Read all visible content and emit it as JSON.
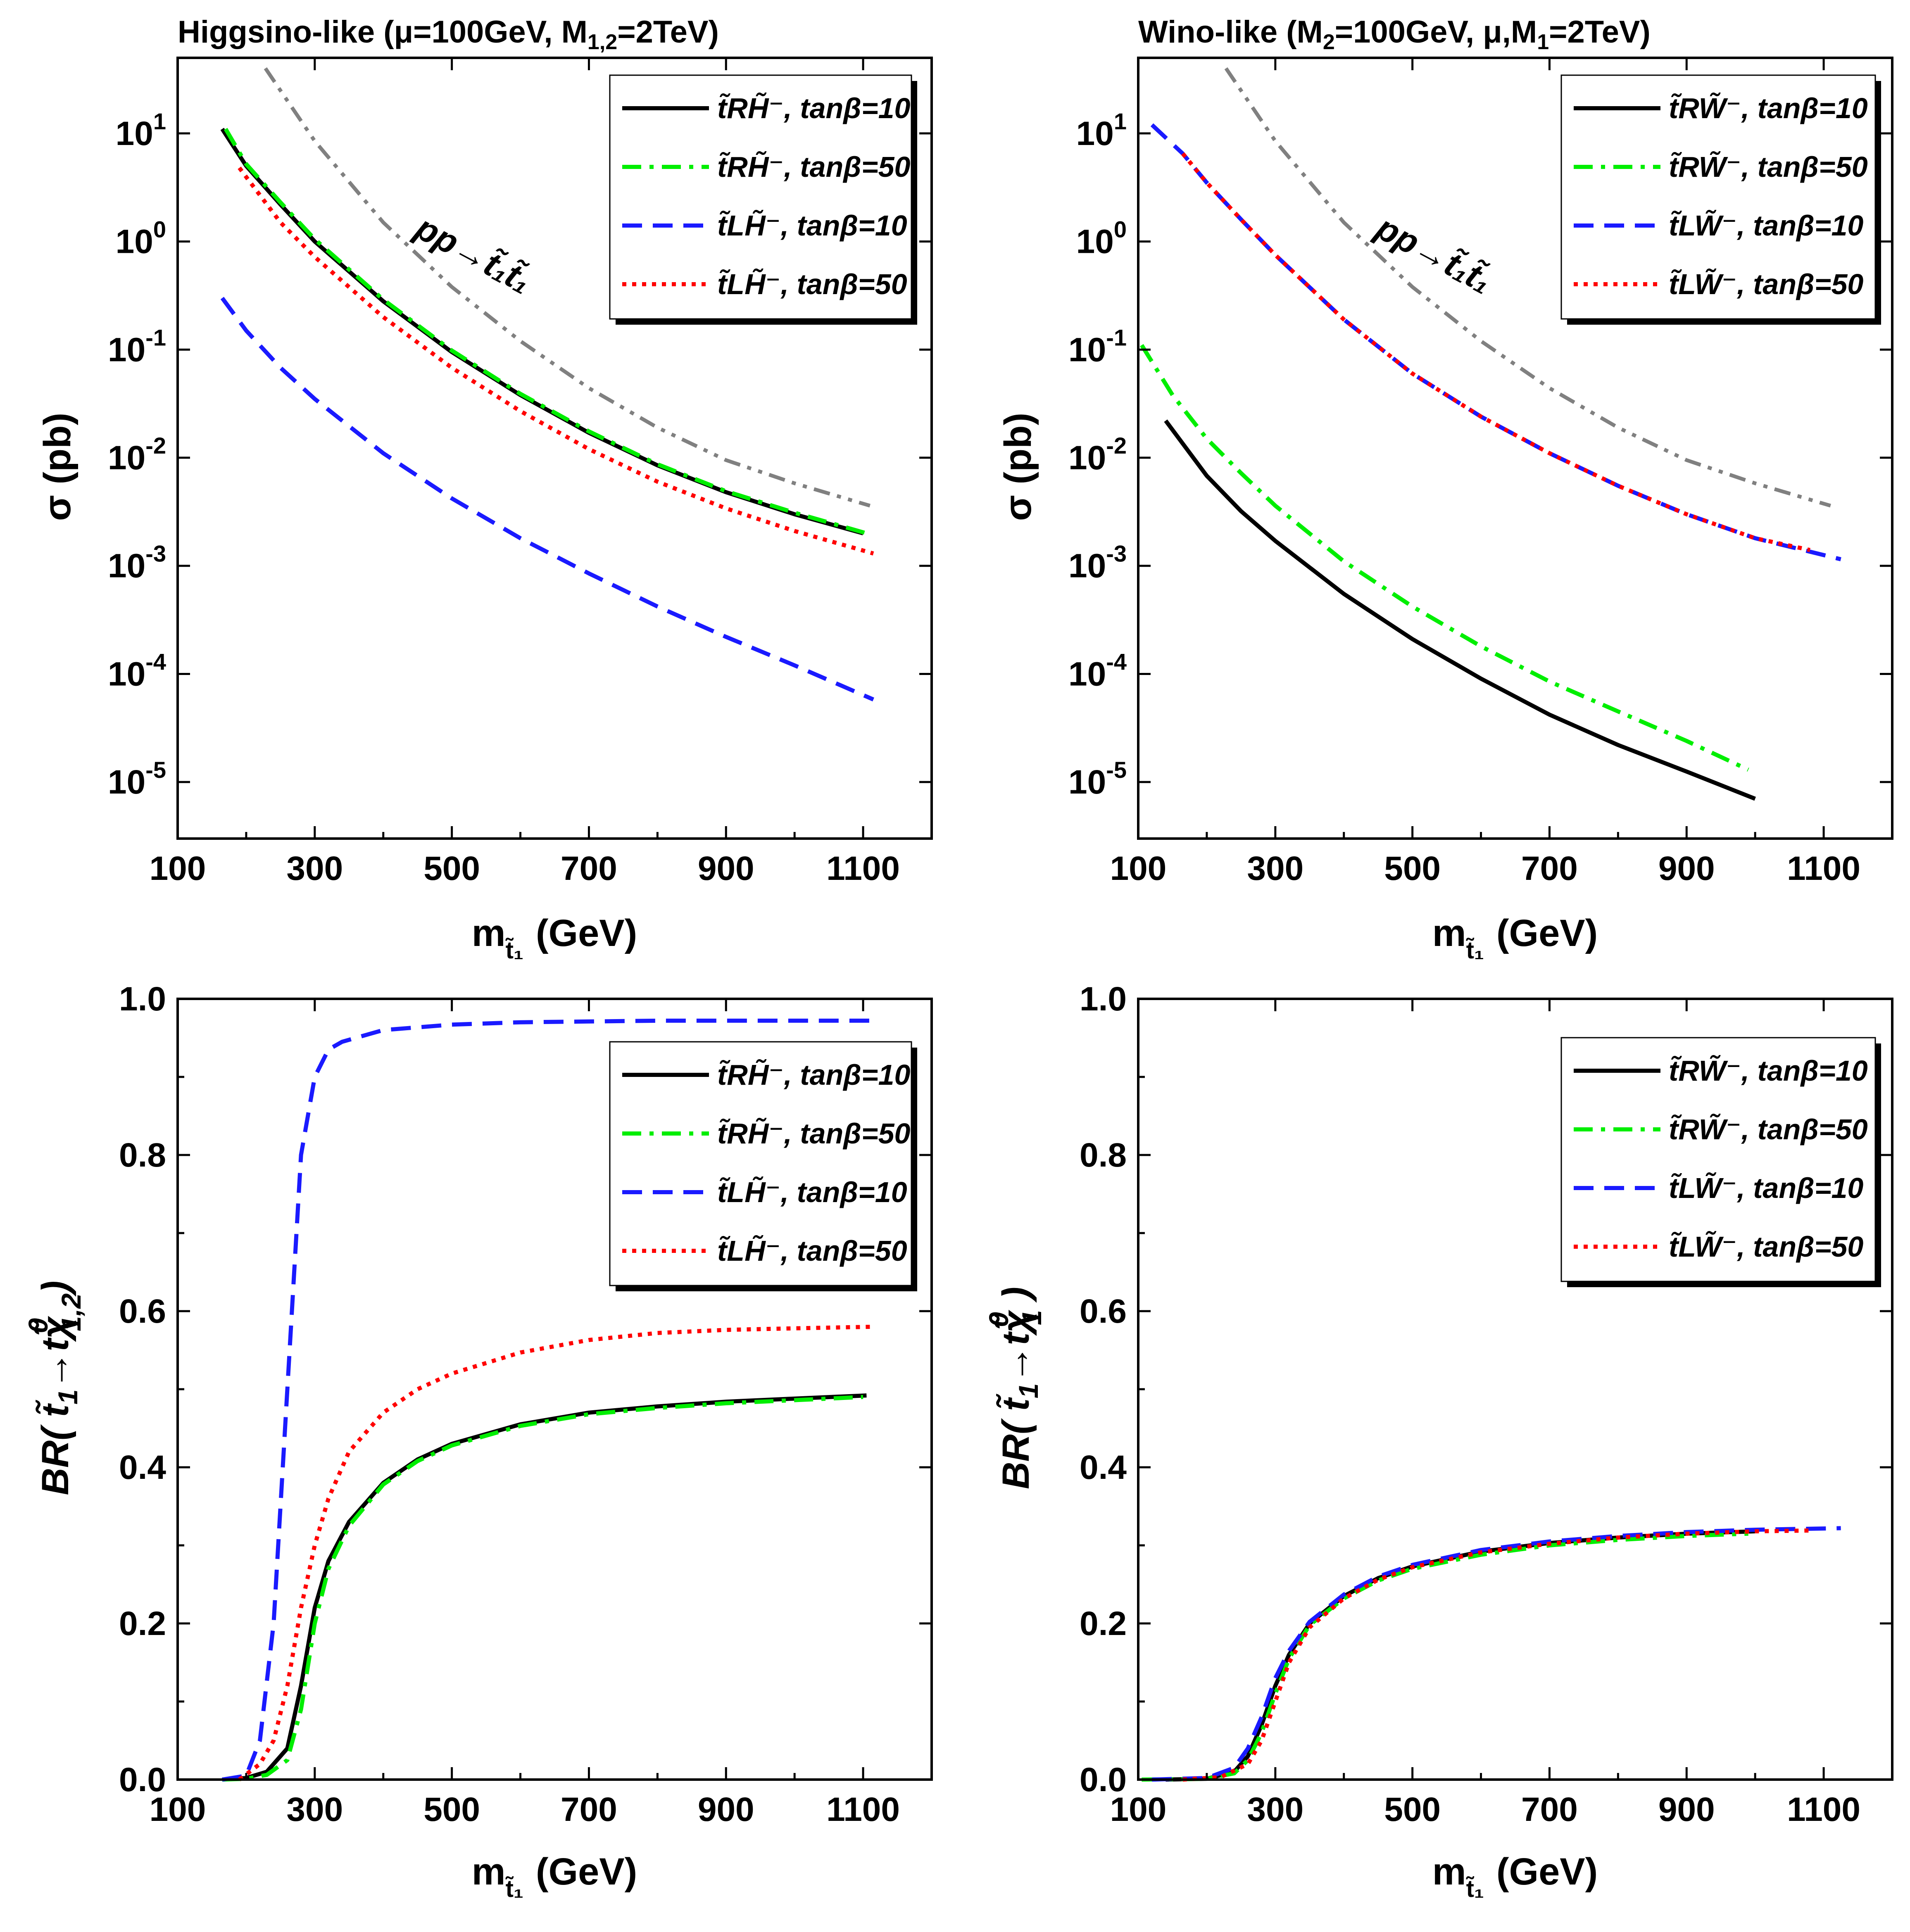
{
  "figure": {
    "styles": {
      "tR_tan10": {
        "color": "#000000",
        "dash": "none"
      },
      "tR_tan50": {
        "color": "#00ee00",
        "dash": "dashdot"
      },
      "tL_tan10": {
        "color": "#1a1aff",
        "dash": "dash"
      },
      "tL_tan50": {
        "color": "#ff0000",
        "dash": "dot"
      },
      "stop_pair": {
        "color": "#808080",
        "dash": "dashdotdot"
      }
    }
  },
  "chart_data": [
    {
      "id": "p1",
      "type": "line",
      "title": "Higgsino-like (μ=100GeV, M₁,₂=2TeV)",
      "title_parts": {
        "a": "Higgsino-like (",
        "b": "μ",
        "c": "=100GeV, M",
        "d": "1,2",
        "e": "=2TeV)"
      },
      "xlabel": {
        "main": "m",
        "sub": "t̃₁",
        "unit": "(GeV)"
      },
      "ylabel": "σ (pb)",
      "yscale": "log",
      "xlim": [
        100,
        1200
      ],
      "ylim": [
        3e-06,
        50
      ],
      "xticks": [
        "100",
        "300",
        "500",
        "700",
        "900",
        "1100"
      ],
      "xtick_values": [
        100,
        300,
        500,
        700,
        900,
        1100
      ],
      "yticks": [
        {
          "base": "10",
          "exp": "1",
          "v": 10
        },
        {
          "base": "10",
          "exp": "0",
          "v": 1
        },
        {
          "base": "10",
          "exp": "-1",
          "v": 0.1
        },
        {
          "base": "10",
          "exp": "-2",
          "v": 0.01
        },
        {
          "base": "10",
          "exp": "-3",
          "v": 0.001
        },
        {
          "base": "10",
          "exp": "-4",
          "v": 0.0001
        },
        {
          "base": "10",
          "exp": "-5",
          "v": 1e-05
        }
      ],
      "annotation": {
        "text": "pp→t̃₁t̃₁",
        "at": [
          560,
          0.6
        ]
      },
      "legend": {
        "placement": "top-right",
        "entries": [
          {
            "label": "t̃RH̃⁻, tanβ=10",
            "style": "tR_tan10"
          },
          {
            "label": "t̃RH̃⁻, tanβ=50",
            "style": "tR_tan50"
          },
          {
            "label": "t̃LH̃⁻, tanβ=10",
            "style": "tL_tan10"
          },
          {
            "label": "t̃LH̃⁻, tanβ=50",
            "style": "tL_tan50"
          }
        ]
      },
      "series": [
        {
          "name": "pp→t̃₁t̃₁",
          "style": "stop_pair",
          "x": [
            228,
            300,
            400,
            500,
            600,
            700,
            800,
            900,
            1000,
            1110
          ],
          "y": [
            40,
            8.5,
            1.5,
            0.38,
            0.12,
            0.044,
            0.019,
            0.0095,
            0.0058,
            0.0036
          ]
        },
        {
          "name": "t̃RH̃⁻, tanβ=10",
          "style": "tR_tan10",
          "x": [
            165,
            200,
            250,
            300,
            400,
            500,
            600,
            700,
            800,
            900,
            1000,
            1100
          ],
          "y": [
            11,
            5,
            2.2,
            1.0,
            0.28,
            0.095,
            0.038,
            0.017,
            0.0085,
            0.0048,
            0.003,
            0.002
          ]
        },
        {
          "name": "t̃RH̃⁻, tanβ=50",
          "style": "tR_tan50",
          "x": [
            170,
            200,
            250,
            300,
            400,
            500,
            600,
            700,
            800,
            900,
            1000,
            1105
          ],
          "y": [
            11,
            5.2,
            2.3,
            1.05,
            0.29,
            0.098,
            0.039,
            0.0175,
            0.0087,
            0.0049,
            0.0031,
            0.002
          ]
        },
        {
          "name": "t̃LH̃⁻, tanβ=10",
          "style": "tL_tan10",
          "x": [
            165,
            200,
            250,
            300,
            400,
            500,
            600,
            700,
            800,
            900,
            1000,
            1115
          ],
          "y": [
            0.3,
            0.15,
            0.068,
            0.035,
            0.011,
            0.0042,
            0.0018,
            0.00085,
            0.00042,
            0.00022,
            0.00012,
            5.8e-05
          ]
        },
        {
          "name": "t̃LH̃⁻, tanβ=50",
          "style": "tL_tan50",
          "x": [
            190,
            250,
            300,
            400,
            500,
            600,
            700,
            800,
            900,
            1000,
            1115
          ],
          "y": [
            4.8,
            1.5,
            0.72,
            0.2,
            0.068,
            0.027,
            0.012,
            0.006,
            0.0034,
            0.0021,
            0.0013
          ]
        }
      ]
    },
    {
      "id": "p2",
      "type": "line",
      "title": "Wino-like (M₂=100GeV, μ,M₁=2TeV)",
      "title_parts": {
        "a": "Wino-like (M",
        "b": "2",
        "c": "=100GeV, ",
        "d": "μ",
        "e": ",M",
        "f": "1",
        "g": "=2TeV)"
      },
      "xlabel": {
        "main": "m",
        "sub": "t̃₁",
        "unit": "(GeV)"
      },
      "ylabel": "σ (pb)",
      "yscale": "log",
      "xlim": [
        100,
        1200
      ],
      "ylim": [
        3e-06,
        50
      ],
      "xticks": [
        "100",
        "300",
        "500",
        "700",
        "900",
        "1100"
      ],
      "xtick_values": [
        100,
        300,
        500,
        700,
        900,
        1100
      ],
      "yticks": [
        {
          "base": "10",
          "exp": "1",
          "v": 10
        },
        {
          "base": "10",
          "exp": "0",
          "v": 1
        },
        {
          "base": "10",
          "exp": "-1",
          "v": 0.1
        },
        {
          "base": "10",
          "exp": "-2",
          "v": 0.01
        },
        {
          "base": "10",
          "exp": "-3",
          "v": 0.001
        },
        {
          "base": "10",
          "exp": "-4",
          "v": 0.0001
        },
        {
          "base": "10",
          "exp": "-5",
          "v": 1e-05
        }
      ],
      "annotation": {
        "text": "pp→t̃₁t̃₁",
        "at": [
          560,
          0.6
        ]
      },
      "legend": {
        "placement": "top-right",
        "entries": [
          {
            "label": "t̃RW̃⁻, tanβ=10",
            "style": "tR_tan10"
          },
          {
            "label": "t̃RW̃⁻, tanβ=50",
            "style": "tR_tan50"
          },
          {
            "label": "t̃LW̃⁻, tanβ=10",
            "style": "tL_tan10"
          },
          {
            "label": "t̃LW̃⁻, tanβ=50",
            "style": "tL_tan50"
          }
        ]
      },
      "series": [
        {
          "name": "pp→t̃₁t̃₁",
          "style": "stop_pair",
          "x": [
            228,
            300,
            400,
            500,
            600,
            700,
            800,
            900,
            1000,
            1110
          ],
          "y": [
            40,
            8.5,
            1.5,
            0.38,
            0.12,
            0.044,
            0.019,
            0.0095,
            0.0058,
            0.0036
          ]
        },
        {
          "name": "t̃RW̃⁻, tanβ=10",
          "style": "tR_tan10",
          "x": [
            140,
            200,
            250,
            300,
            400,
            500,
            600,
            700,
            800,
            900,
            1000
          ],
          "y": [
            0.022,
            0.0068,
            0.0032,
            0.0017,
            0.00055,
            0.00021,
            9.05e-05,
            4.2e-05,
            2.2e-05,
            1.25e-05,
            7e-06
          ]
        },
        {
          "name": "t̃RW̃⁻, tanβ=50",
          "style": "tR_tan50",
          "x": [
            105,
            150,
            200,
            250,
            300,
            400,
            500,
            600,
            700,
            800,
            900,
            990
          ],
          "y": [
            0.11,
            0.038,
            0.015,
            0.0072,
            0.0036,
            0.0011,
            0.00042,
            0.00018,
            8.5e-05,
            4.5e-05,
            2.4e-05,
            1.3e-05
          ]
        },
        {
          "name": "t̃LW̃⁻, tanβ=10",
          "style": "tL_tan10",
          "x": [
            120,
            165,
            200,
            250,
            300,
            400,
            500,
            600,
            700,
            800,
            900,
            1000,
            1125
          ],
          "y": [
            12,
            6.5,
            3.5,
            1.6,
            0.75,
            0.19,
            0.06,
            0.024,
            0.011,
            0.0055,
            0.003,
            0.0018,
            0.00115
          ]
        },
        {
          "name": "t̃LW̃⁻, tanβ=50",
          "style": "tL_tan50",
          "x": [
            165,
            200,
            250,
            300,
            400,
            500,
            600,
            700,
            800,
            900,
            1000,
            1080
          ],
          "y": [
            6.5,
            3.5,
            1.6,
            0.75,
            0.19,
            0.06,
            0.024,
            0.011,
            0.0055,
            0.003,
            0.0018,
            0.0014
          ]
        }
      ]
    },
    {
      "id": "p3",
      "type": "line",
      "title": "",
      "xlabel": {
        "main": "m",
        "sub": "t̃₁",
        "unit": "(GeV)"
      },
      "ylabel": "BR( t̃₁→tχ̃⁰₁,₂)",
      "ylabel_parts": {
        "a": "BR( ",
        "b": "t̃",
        "c": "1",
        "d": "→t",
        "e": "χ̃",
        "f": "0",
        "g": "1,2",
        "h": ")"
      },
      "yscale": "linear",
      "xlim": [
        100,
        1200
      ],
      "ylim": [
        0,
        1
      ],
      "xticks": [
        "100",
        "300",
        "500",
        "700",
        "900",
        "1100"
      ],
      "xtick_values": [
        100,
        300,
        500,
        700,
        900,
        1100
      ],
      "yticks": [
        {
          "label": "0.0",
          "v": 0
        },
        {
          "label": "0.2",
          "v": 0.2
        },
        {
          "label": "0.4",
          "v": 0.4
        },
        {
          "label": "0.6",
          "v": 0.6
        },
        {
          "label": "0.8",
          "v": 0.8
        },
        {
          "label": "1.0",
          "v": 1.0
        }
      ],
      "legend": {
        "placement": "right",
        "entries": [
          {
            "label": "t̃RH̃⁻, tanβ=10",
            "style": "tR_tan10"
          },
          {
            "label": "t̃RH̃⁻, tanβ=50",
            "style": "tR_tan50"
          },
          {
            "label": "t̃LH̃⁻, tanβ=10",
            "style": "tL_tan10"
          },
          {
            "label": "t̃LH̃⁻, tanβ=50",
            "style": "tL_tan50"
          }
        ]
      },
      "series": [
        {
          "name": "t̃RH̃⁻, tanβ=10",
          "style": "tR_tan10",
          "x": [
            165,
            200,
            230,
            260,
            280,
            300,
            320,
            350,
            400,
            450,
            500,
            600,
            700,
            800,
            900,
            1000,
            1105
          ],
          "y": [
            0,
            0.002,
            0.01,
            0.04,
            0.12,
            0.22,
            0.28,
            0.33,
            0.38,
            0.41,
            0.43,
            0.455,
            0.47,
            0.478,
            0.484,
            0.488,
            0.492
          ]
        },
        {
          "name": "t̃RH̃⁻, tanβ=50",
          "style": "tR_tan50",
          "x": [
            165,
            200,
            230,
            260,
            280,
            300,
            320,
            350,
            400,
            450,
            500,
            600,
            700,
            800,
            900,
            1000,
            1100
          ],
          "y": [
            0,
            0.001,
            0.006,
            0.025,
            0.09,
            0.2,
            0.27,
            0.325,
            0.378,
            0.408,
            0.428,
            0.453,
            0.468,
            0.476,
            0.482,
            0.486,
            0.49
          ]
        },
        {
          "name": "t̃LH̃⁻, tanβ=10",
          "style": "tL_tan10",
          "x": [
            165,
            200,
            220,
            240,
            260,
            280,
            300,
            320,
            340,
            400,
            500,
            600,
            700,
            800,
            900,
            1000,
            1115
          ],
          "y": [
            0,
            0.005,
            0.05,
            0.2,
            0.5,
            0.8,
            0.9,
            0.935,
            0.945,
            0.96,
            0.967,
            0.97,
            0.971,
            0.972,
            0.972,
            0.972,
            0.972
          ]
        },
        {
          "name": "t̃LH̃⁻, tanβ=50",
          "style": "tL_tan50",
          "x": [
            190,
            220,
            240,
            260,
            280,
            300,
            320,
            350,
            400,
            450,
            500,
            600,
            700,
            800,
            900,
            1000,
            1115
          ],
          "y": [
            0,
            0.02,
            0.05,
            0.12,
            0.22,
            0.3,
            0.36,
            0.42,
            0.47,
            0.5,
            0.52,
            0.547,
            0.563,
            0.572,
            0.576,
            0.578,
            0.58
          ]
        }
      ]
    },
    {
      "id": "p4",
      "type": "line",
      "title": "",
      "xlabel": {
        "main": "m",
        "sub": "t̃₁",
        "unit": "(GeV)"
      },
      "ylabel": "BR( t̃₁→tχ̃⁰₁ )",
      "ylabel_parts": {
        "a": "BR( ",
        "b": "t̃",
        "c": "1",
        "d": "→t",
        "e": "χ̃",
        "f": "0",
        "g": "1",
        "h": " )"
      },
      "yscale": "linear",
      "xlim": [
        100,
        1200
      ],
      "ylim": [
        0,
        1
      ],
      "xticks": [
        "100",
        "300",
        "500",
        "700",
        "900",
        "1100"
      ],
      "xtick_values": [
        100,
        300,
        500,
        700,
        900,
        1100
      ],
      "yticks": [
        {
          "label": "0.0",
          "v": 0
        },
        {
          "label": "0.2",
          "v": 0.2
        },
        {
          "label": "0.4",
          "v": 0.4
        },
        {
          "label": "0.6",
          "v": 0.6
        },
        {
          "label": "0.8",
          "v": 0.8
        },
        {
          "label": "1.0",
          "v": 1.0
        }
      ],
      "legend": {
        "placement": "right",
        "entries": [
          {
            "label": "t̃RW̃⁻, tanβ=10",
            "style": "tR_tan10"
          },
          {
            "label": "t̃RW̃⁻, tanβ=50",
            "style": "tR_tan50"
          },
          {
            "label": "t̃LW̃⁻, tanβ=10",
            "style": "tL_tan10"
          },
          {
            "label": "t̃LW̃⁻, tanβ=50",
            "style": "tL_tan50"
          }
        ]
      },
      "series": [
        {
          "name": "t̃RW̃⁻, tanβ=10",
          "style": "tR_tan10",
          "x": [
            140,
            200,
            240,
            260,
            280,
            300,
            320,
            350,
            400,
            450,
            500,
            600,
            700,
            800,
            900,
            1000
          ],
          "y": [
            0,
            0.001,
            0.01,
            0.03,
            0.07,
            0.12,
            0.16,
            0.2,
            0.235,
            0.258,
            0.273,
            0.292,
            0.303,
            0.31,
            0.315,
            0.318
          ]
        },
        {
          "name": "t̃RW̃⁻, tanβ=50",
          "style": "tR_tan50",
          "x": [
            105,
            200,
            240,
            260,
            280,
            300,
            320,
            350,
            400,
            450,
            500,
            600,
            700,
            800,
            900,
            990
          ],
          "y": [
            0,
            0.001,
            0.008,
            0.025,
            0.06,
            0.11,
            0.155,
            0.198,
            0.232,
            0.255,
            0.27,
            0.288,
            0.3,
            0.307,
            0.312,
            0.315
          ]
        },
        {
          "name": "t̃LW̃⁻, tanβ=10",
          "style": "tL_tan10",
          "x": [
            120,
            200,
            240,
            260,
            280,
            300,
            320,
            350,
            400,
            450,
            500,
            600,
            700,
            800,
            900,
            1000,
            1125
          ],
          "y": [
            0,
            0.002,
            0.015,
            0.04,
            0.08,
            0.13,
            0.165,
            0.202,
            0.237,
            0.26,
            0.275,
            0.294,
            0.305,
            0.312,
            0.317,
            0.32,
            0.322
          ]
        },
        {
          "name": "t̃LW̃⁻, tanβ=50",
          "style": "tL_tan50",
          "x": [
            165,
            220,
            260,
            280,
            300,
            320,
            350,
            400,
            450,
            500,
            600,
            700,
            800,
            900,
            1000,
            1080
          ],
          "y": [
            0,
            0.003,
            0.02,
            0.05,
            0.1,
            0.15,
            0.195,
            0.232,
            0.256,
            0.272,
            0.291,
            0.302,
            0.31,
            0.315,
            0.318,
            0.319
          ]
        }
      ]
    }
  ]
}
